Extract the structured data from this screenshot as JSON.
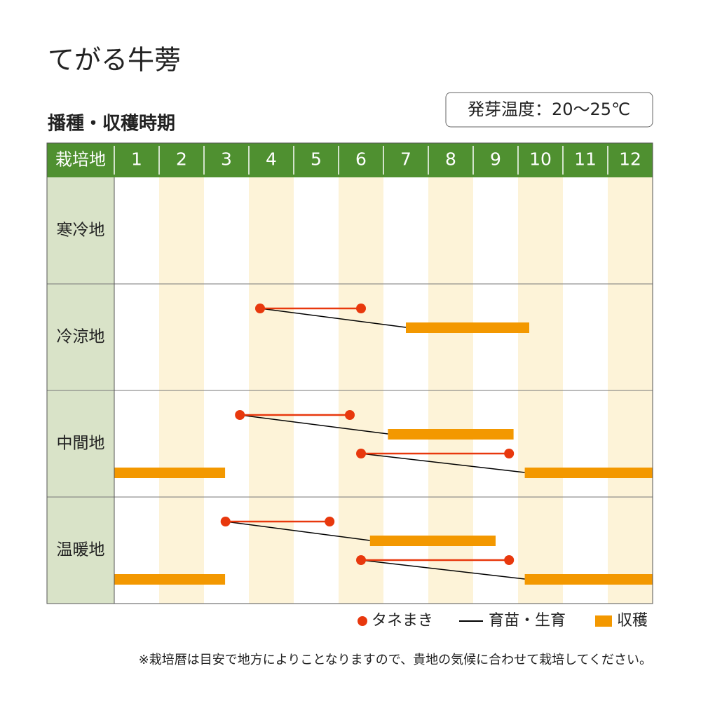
{
  "chart_data": {
    "type": "gantt",
    "title": "てがる牛蒡",
    "subtitle": "播種・収穫時期",
    "note_box": "発芽温度：20～25℃",
    "row_header": "栽培地",
    "categories": [
      1,
      2,
      3,
      4,
      5,
      6,
      7,
      8,
      9,
      10,
      11,
      12
    ],
    "xlim": [
      1,
      13
    ],
    "colors": {
      "sowing": "#e8380d",
      "growing": "#000000",
      "harvest": "#f39800",
      "header": "#4f9030",
      "label_bg": "#d9e3c8",
      "alt_col": "#fdf3d8"
    },
    "legend": [
      "タネまき",
      "育苗・生育",
      "収穫"
    ],
    "regions": [
      {
        "name": "寒冷地",
        "plans": []
      },
      {
        "name": "冷涼地",
        "plans": [
          {
            "sowing": [
              4.25,
              6.5
            ],
            "harvest": [
              [
                7.5,
                10.25
              ]
            ]
          }
        ]
      },
      {
        "name": "中間地",
        "plans": [
          {
            "sowing": [
              3.8,
              6.25
            ],
            "harvest": [
              [
                7.1,
                9.9
              ]
            ]
          },
          {
            "sowing": [
              6.5,
              9.8
            ],
            "harvest": [
              [
                10.15,
                13
              ],
              [
                1,
                3.47
              ]
            ]
          }
        ]
      },
      {
        "name": "温暖地",
        "plans": [
          {
            "sowing": [
              3.48,
              5.8
            ],
            "harvest": [
              [
                6.7,
                9.5
              ]
            ]
          },
          {
            "sowing": [
              6.5,
              9.8
            ],
            "harvest": [
              [
                10.15,
                13
              ],
              [
                1,
                3.47
              ]
            ]
          }
        ]
      }
    ],
    "footnote": "※栽培暦は目安で地方によりことなりますので、貴地の気候に合わせて栽培してください。"
  }
}
